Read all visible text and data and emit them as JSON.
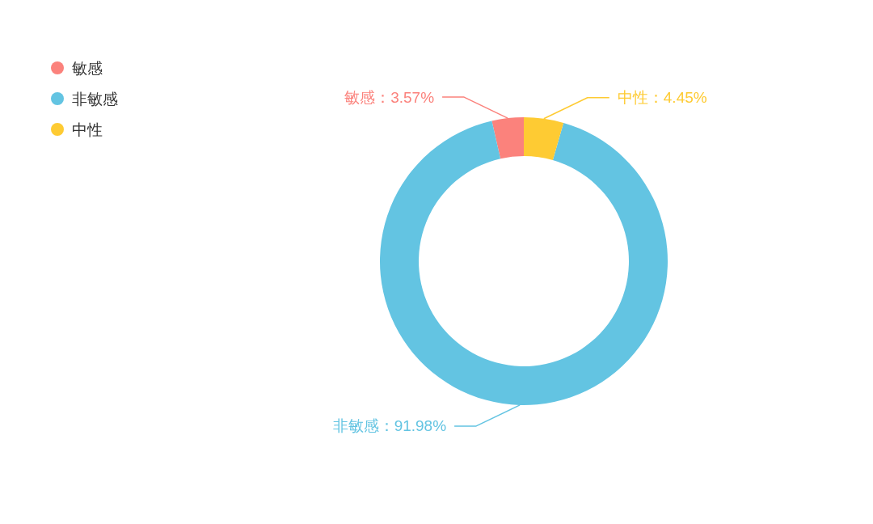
{
  "chart_data": {
    "type": "donut",
    "categories": [
      "敏感",
      "非敏感",
      "中性"
    ],
    "values": [
      3.57,
      91.98,
      4.45
    ],
    "colors": [
      "#fb827c",
      "#63c4e2",
      "#fecb33"
    ],
    "value_labels": [
      "敏感：3.57%",
      "非敏感：91.98%",
      "中性：4.45%"
    ],
    "legend": "top left"
  }
}
